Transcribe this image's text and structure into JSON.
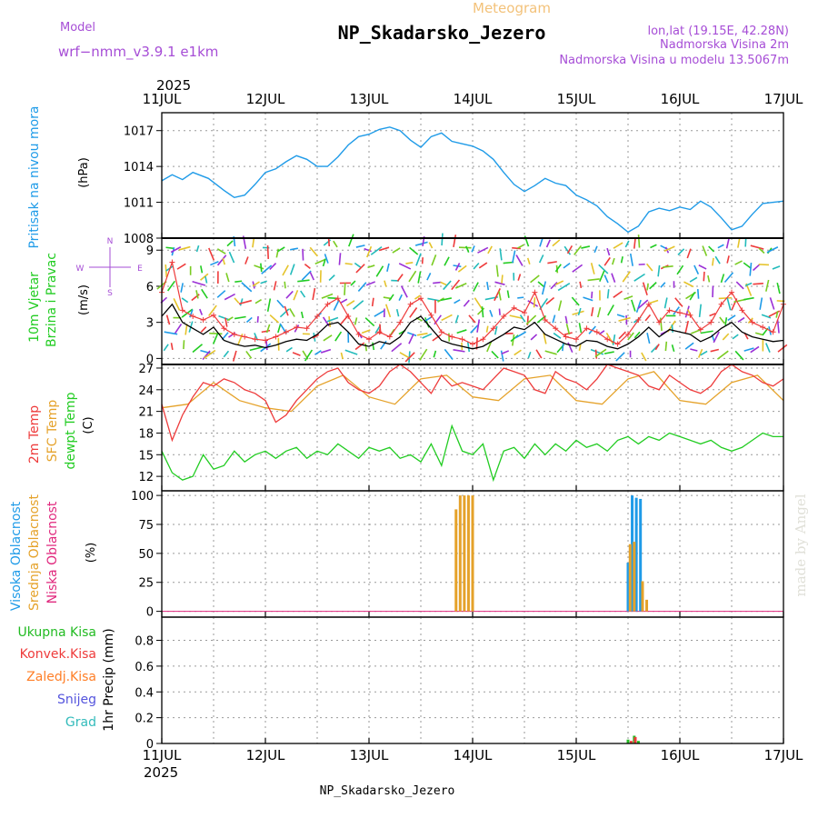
{
  "header": {
    "model_label": "Model",
    "model_name": "wrf−nmm_v3.9.1 e1km",
    "product": "Meteogram",
    "station": "NP_Skadarsko_Jezero",
    "lonlat": "lon,lat (19.15E, 42.28N)",
    "elevation": "Nadmorska Visina 2m",
    "model_elevation": "Nadmorska Visina u modelu 13.5067m"
  },
  "time_axis": {
    "year": "2025",
    "labels": [
      "11JUL",
      "12JUL",
      "13JUL",
      "14JUL",
      "15JUL",
      "16JUL",
      "17JUL"
    ]
  },
  "footer": {
    "station": "NP_Skadarsko_Jezero"
  },
  "watermark": "made by Angel",
  "colors": {
    "pressure": "#1f9be8",
    "temp2m": "#ee3b3b",
    "sfc": "#e5a22a",
    "dewpt": "#22cc22",
    "wind_speed": "#000000",
    "gust": "#ee3b3b",
    "high_cloud": "#1f9be8",
    "mid_cloud": "#e5a22a",
    "low_cloud": "#e0287d",
    "total_precip": "#22bb22",
    "conv_precip": "#ee3b3b",
    "freezing": "#ff7f27",
    "snow": "#5555dd",
    "hail": "#33bbbb"
  },
  "chart_data": [
    {
      "type": "line",
      "panel": "pressure",
      "ylabel": "Pritisak na nivou mora",
      "unit": "(hPa)",
      "yticks": [
        1008,
        1011,
        1014,
        1017
      ],
      "ylim": [
        1008,
        1018.5
      ],
      "x_unit": "days since 11JUL 00UTC",
      "series": [
        {
          "name": "Pritisak na nivou mora",
          "x": [
            0,
            0.1,
            0.2,
            0.3,
            0.45,
            0.6,
            0.7,
            0.8,
            0.9,
            1.0,
            1.1,
            1.2,
            1.3,
            1.4,
            1.5,
            1.6,
            1.7,
            1.8,
            1.9,
            2.0,
            2.1,
            2.2,
            2.3,
            2.4,
            2.5,
            2.6,
            2.7,
            2.8,
            2.9,
            3.0,
            3.1,
            3.2,
            3.3,
            3.4,
            3.5,
            3.6,
            3.7,
            3.8,
            3.9,
            4.0,
            4.1,
            4.2,
            4.3,
            4.4,
            4.5,
            4.6,
            4.7,
            4.8,
            4.9,
            5.0,
            5.1,
            5.2,
            5.3,
            5.4,
            5.5,
            5.6,
            5.7,
            5.8,
            5.9,
            6.0
          ],
          "y": [
            1012.8,
            1013.3,
            1012.9,
            1013.5,
            1013.0,
            1012.0,
            1011.4,
            1011.6,
            1012.5,
            1013.5,
            1013.8,
            1014.4,
            1014.9,
            1014.6,
            1014.0,
            1014.0,
            1014.8,
            1015.8,
            1016.5,
            1016.7,
            1017.1,
            1017.3,
            1017.0,
            1016.2,
            1015.6,
            1016.5,
            1016.8,
            1016.1,
            1015.9,
            1015.7,
            1015.3,
            1014.6,
            1013.5,
            1012.5,
            1011.9,
            1012.4,
            1013.0,
            1012.6,
            1012.4,
            1011.6,
            1011.2,
            1010.7,
            1009.8,
            1009.2,
            1008.5,
            1009.0,
            1010.2,
            1010.5,
            1010.3,
            1010.6,
            1010.4,
            1011.1,
            1010.6,
            1009.7,
            1008.7,
            1009.0,
            1010.0,
            1010.9,
            1011.0,
            1011.1
          ]
        }
      ]
    },
    {
      "type": "line",
      "panel": "wind",
      "ylabel": [
        "10m Vjetar",
        "Brzina i Pravac"
      ],
      "unit": "(m/s)",
      "compass": {
        "n": "N",
        "e": "E",
        "w": "W",
        "s": "S"
      },
      "yticks": [
        0,
        3,
        6,
        9
      ],
      "ylim": [
        -0.5,
        10
      ],
      "x_unit": "days since 11JUL 00UTC",
      "series": [
        {
          "name": "10m Vjetar",
          "x": [
            0,
            0.1,
            0.2,
            0.3,
            0.4,
            0.5,
            0.6,
            0.7,
            0.8,
            0.9,
            1.0,
            1.1,
            1.2,
            1.3,
            1.4,
            1.5,
            1.6,
            1.7,
            1.8,
            1.9,
            2.0,
            2.1,
            2.2,
            2.3,
            2.4,
            2.5,
            2.6,
            2.7,
            2.8,
            2.9,
            3.0,
            3.1,
            3.2,
            3.3,
            3.4,
            3.5,
            3.6,
            3.7,
            3.8,
            3.9,
            4.0,
            4.1,
            4.2,
            4.3,
            4.4,
            4.5,
            4.6,
            4.7,
            4.8,
            4.9,
            5.0,
            5.1,
            5.2,
            5.3,
            5.4,
            5.5,
            5.6,
            5.7,
            5.8,
            5.9,
            6.0
          ],
          "y": [
            3.5,
            4.5,
            3.0,
            2.5,
            2.0,
            2.6,
            1.5,
            1.2,
            1.0,
            1.1,
            0.9,
            1.1,
            1.4,
            1.6,
            1.5,
            2.0,
            2.8,
            3.0,
            2.2,
            1.2,
            1.0,
            1.4,
            1.2,
            1.8,
            3.0,
            3.5,
            2.5,
            1.5,
            1.2,
            1.0,
            0.8,
            1.0,
            1.5,
            2.0,
            2.6,
            2.4,
            3.0,
            2.0,
            1.6,
            1.2,
            1.0,
            1.5,
            1.4,
            1.0,
            0.8,
            1.2,
            1.8,
            2.6,
            1.8,
            2.4,
            2.2,
            2.0,
            1.4,
            1.8,
            2.5,
            3.0,
            2.2,
            1.8,
            1.6,
            1.4,
            1.5
          ]
        },
        {
          "name": "gust",
          "x": [
            0,
            0.1,
            0.2,
            0.3,
            0.4,
            0.5,
            0.6,
            0.7,
            0.8,
            0.9,
            1.0,
            1.1,
            1.2,
            1.3,
            1.4,
            1.5,
            1.6,
            1.7,
            1.8,
            1.9,
            2.0,
            2.1,
            2.2,
            2.3,
            2.4,
            2.5,
            2.6,
            2.7,
            2.8,
            2.9,
            3.0,
            3.1,
            3.2,
            3.3,
            3.4,
            3.5,
            3.6,
            3.7,
            3.8,
            3.9,
            4.0,
            4.1,
            4.2,
            4.3,
            4.4,
            4.5,
            4.6,
            4.7,
            4.8,
            4.9,
            5.0,
            5.1,
            5.2,
            5.3,
            5.4,
            5.5,
            5.6,
            5.7,
            5.8,
            5.9,
            6.0
          ],
          "y": [
            5.5,
            8.0,
            4.0,
            3.5,
            3.2,
            3.6,
            2.5,
            2.0,
            1.8,
            1.6,
            1.5,
            1.8,
            2.2,
            2.6,
            2.5,
            3.5,
            4.5,
            5.0,
            3.5,
            2.0,
            1.6,
            2.2,
            1.8,
            3.0,
            4.5,
            5.0,
            3.6,
            2.2,
            1.8,
            1.6,
            1.2,
            1.6,
            2.5,
            3.5,
            4.2,
            3.8,
            5.5,
            3.2,
            2.5,
            1.8,
            1.6,
            2.5,
            2.2,
            1.6,
            1.2,
            2.0,
            3.2,
            4.5,
            3.0,
            4.0,
            3.8,
            3.6,
            2.4,
            3.0,
            4.5,
            5.5,
            4.0,
            3.0,
            2.6,
            2.2,
            4.5
          ]
        }
      ]
    },
    {
      "type": "line",
      "panel": "temperature",
      "ylabel": [
        "2m Temp",
        "SFC Temp",
        "dewpt Temp"
      ],
      "unit": "(C)",
      "yticks": [
        12,
        15,
        18,
        21,
        24,
        27
      ],
      "ylim": [
        10,
        27.5
      ],
      "x_unit": "days since 11JUL 00UTC",
      "series": [
        {
          "name": "2m Temp",
          "x": [
            0,
            0.1,
            0.2,
            0.3,
            0.4,
            0.5,
            0.6,
            0.7,
            0.8,
            0.9,
            1.0,
            1.1,
            1.2,
            1.3,
            1.4,
            1.5,
            1.6,
            1.7,
            1.8,
            1.9,
            2.0,
            2.1,
            2.2,
            2.3,
            2.4,
            2.5,
            2.6,
            2.7,
            2.8,
            2.9,
            3.0,
            3.1,
            3.2,
            3.3,
            3.4,
            3.5,
            3.6,
            3.7,
            3.8,
            3.9,
            4.0,
            4.1,
            4.2,
            4.3,
            4.4,
            4.5,
            4.6,
            4.7,
            4.8,
            4.9,
            5.0,
            5.1,
            5.2,
            5.3,
            5.4,
            5.5,
            5.6,
            5.7,
            5.8,
            5.9,
            6.0
          ],
          "y": [
            22.0,
            17.0,
            20.5,
            23.0,
            25.0,
            24.5,
            25.5,
            25.0,
            24.0,
            23.5,
            22.5,
            19.5,
            20.5,
            22.5,
            24.0,
            25.5,
            26.5,
            27.0,
            25.0,
            24.0,
            23.5,
            24.5,
            26.5,
            27.5,
            26.5,
            25.0,
            23.5,
            26.0,
            24.5,
            25.0,
            24.5,
            24.0,
            25.5,
            27.0,
            26.5,
            26.0,
            24.0,
            23.5,
            26.5,
            25.5,
            25.0,
            24.0,
            25.5,
            27.5,
            27.0,
            26.5,
            26.0,
            24.5,
            24.0,
            26.0,
            25.0,
            24.0,
            23.5,
            24.5,
            26.5,
            27.5,
            26.5,
            26.0,
            25.0,
            24.5,
            25.5
          ]
        },
        {
          "name": "SFC Temp",
          "x": [
            0,
            0.25,
            0.5,
            0.75,
            1.0,
            1.25,
            1.5,
            1.75,
            2.0,
            2.25,
            2.5,
            2.75,
            3.0,
            3.25,
            3.5,
            3.75,
            4.0,
            4.25,
            4.5,
            4.75,
            5.0,
            5.25,
            5.5,
            5.75,
            6.0
          ],
          "y": [
            21.5,
            22.0,
            25.0,
            22.5,
            21.5,
            21.0,
            24.5,
            26.0,
            23.0,
            22.0,
            25.5,
            26.0,
            23.0,
            22.5,
            25.5,
            26.0,
            22.5,
            22.0,
            25.5,
            26.5,
            22.5,
            22.0,
            25.0,
            26.0,
            22.5
          ]
        },
        {
          "name": "dewpt Temp",
          "x": [
            0,
            0.1,
            0.2,
            0.3,
            0.4,
            0.5,
            0.6,
            0.7,
            0.8,
            0.9,
            1.0,
            1.1,
            1.2,
            1.3,
            1.4,
            1.5,
            1.6,
            1.7,
            1.8,
            1.9,
            2.0,
            2.1,
            2.2,
            2.3,
            2.4,
            2.5,
            2.6,
            2.7,
            2.8,
            2.9,
            3.0,
            3.1,
            3.2,
            3.3,
            3.4,
            3.5,
            3.6,
            3.7,
            3.8,
            3.9,
            4.0,
            4.1,
            4.2,
            4.3,
            4.4,
            4.5,
            4.6,
            4.7,
            4.8,
            4.9,
            5.0,
            5.1,
            5.2,
            5.3,
            5.4,
            5.5,
            5.6,
            5.7,
            5.8,
            5.9,
            6.0
          ],
          "y": [
            15.5,
            12.5,
            11.5,
            12.0,
            15.0,
            13.0,
            13.5,
            15.5,
            14.0,
            15.0,
            15.5,
            14.5,
            15.5,
            16.0,
            14.5,
            15.5,
            15.0,
            16.5,
            15.5,
            14.5,
            16.0,
            15.5,
            16.0,
            14.5,
            15.0,
            14.0,
            16.5,
            13.5,
            19.0,
            15.5,
            15.0,
            16.5,
            11.5,
            15.5,
            16.0,
            14.5,
            16.5,
            15.0,
            16.5,
            15.5,
            17.0,
            16.0,
            16.5,
            15.5,
            17.0,
            17.5,
            16.5,
            17.5,
            17.0,
            18.0,
            17.5,
            17.0,
            16.5,
            17.0,
            16.0,
            15.5,
            16.0,
            17.0,
            18.0,
            17.5,
            17.5
          ]
        }
      ]
    },
    {
      "type": "bar",
      "panel": "cloud",
      "ylabel": [
        "Visoka Oblacnost",
        "Srednja Oblacnost",
        "Niska Oblacnost"
      ],
      "unit": "(%)",
      "yticks": [
        0,
        25,
        50,
        75,
        100
      ],
      "ylim": [
        -5,
        104
      ],
      "x_unit": "days since 11JUL 00UTC",
      "series": [
        {
          "name": "Visoka Oblacnost",
          "x": [
            4.5,
            4.54,
            4.58,
            4.62
          ],
          "values": [
            42,
            100,
            98,
            97
          ]
        },
        {
          "name": "Srednja Oblacnost",
          "x": [
            2.84,
            2.88,
            2.92,
            2.96,
            3.0,
            4.52,
            4.56,
            4.64,
            4.68
          ],
          "values": [
            88,
            100,
            100,
            100,
            100,
            58,
            60,
            26,
            10
          ]
        },
        {
          "name": "Niska Oblacnost",
          "x": [],
          "values": []
        }
      ]
    },
    {
      "type": "bar",
      "panel": "precipitation",
      "ylabel": "1hr Precip (mm)",
      "legend": [
        "Ukupna Kisa",
        "Konvek.Kisa",
        "Zaledj.Kisa",
        "Snijeg",
        "Grad"
      ],
      "yticks": [
        0,
        0.2,
        0.4,
        0.6,
        0.8
      ],
      "ylim": [
        0,
        0.98
      ],
      "x_unit": "days since 11JUL 00UTC",
      "series": [
        {
          "name": "Ukupna Kisa",
          "x": [
            4.5,
            4.56,
            4.6
          ],
          "values": [
            0.03,
            0.06,
            0.02
          ]
        },
        {
          "name": "Konvek.Kisa",
          "x": [
            4.53,
            4.57
          ],
          "values": [
            0.02,
            0.05
          ]
        }
      ]
    }
  ]
}
